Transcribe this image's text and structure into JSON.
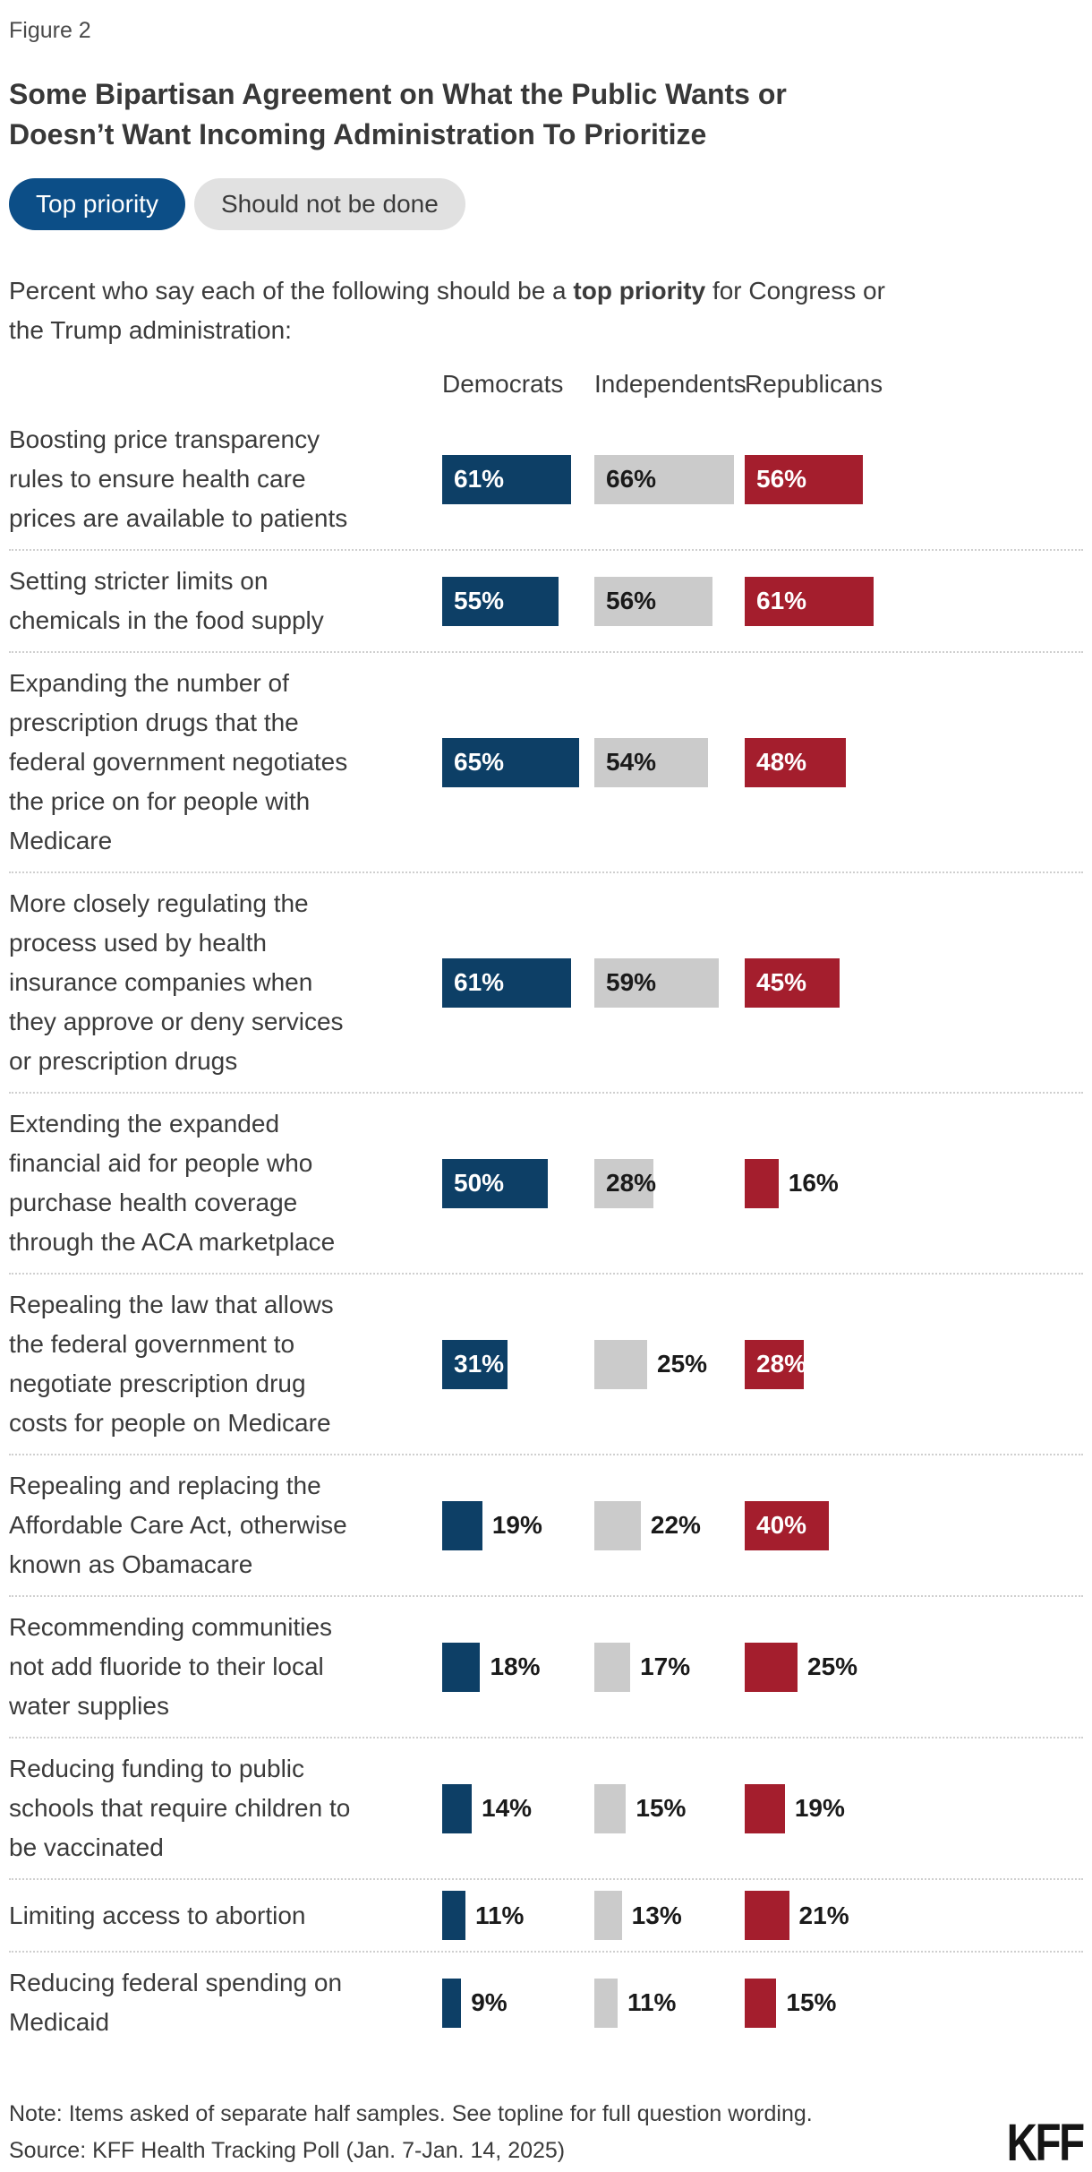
{
  "figure_label": "Figure 2",
  "title": "Some Bipartisan Agreement on What the Public Wants or\nDoesn’t Want Incoming Administration To Prioritize",
  "toggle": {
    "active_label": "Top priority",
    "inactive_label": "Should not be done"
  },
  "description": {
    "part1": "Percent who say each of the following should be a ",
    "bold": "top priority",
    "part2": " for Congress or",
    "part3": "the Trump administration:"
  },
  "colors": {
    "bars": [
      "#0D3F66",
      "#CBCBCB",
      "#A41E2D"
    ],
    "inside_label": [
      "#FFFFFF",
      "#1A1A1A",
      "#FFFFFF"
    ],
    "toggle_active_bg": "#0C4E87",
    "toggle_inactive_bg": "#E1E1E1"
  },
  "chart_data": {
    "type": "bar",
    "title": "Some Bipartisan Agreement on What the Public Wants or Doesn’t Want Incoming Administration To Prioritize",
    "unit": "%",
    "value_axis": "hidden",
    "value_range": [
      0,
      100
    ],
    "label_inside_threshold": 28,
    "categories": [
      "Boosting price transparency\nrules to ensure health care\nprices are available to patients",
      "Setting stricter limits on\nchemicals in the food supply",
      "Expanding the number of\nprescription drugs that the\nfederal government negotiates\nthe price on for people with\nMedicare",
      "More closely regulating the\nprocess used by health\ninsurance companies when\nthey approve or deny services\nor prescription drugs",
      "Extending the expanded\nfinancial aid for people who\npurchase health coverage\nthrough the ACA marketplace",
      "Repealing the law that allows\nthe federal government to\nnegotiate prescription drug\ncosts for people on Medicare",
      "Repealing and replacing the\nAffordable Care Act, otherwise\nknown as Obamacare",
      "Recommending communities\nnot add fluoride to their local\nwater supplies",
      "Reducing funding to public\nschools that require children to\nbe vaccinated",
      "Limiting access to abortion",
      "Reducing federal spending on\nMedicaid"
    ],
    "series": [
      {
        "name": "Democrats",
        "values": [
          61,
          55,
          65,
          61,
          50,
          31,
          19,
          18,
          14,
          11,
          9
        ]
      },
      {
        "name": "Independents",
        "values": [
          66,
          56,
          54,
          59,
          28,
          25,
          22,
          17,
          15,
          13,
          11
        ]
      },
      {
        "name": "Republicans",
        "values": [
          56,
          61,
          48,
          45,
          16,
          28,
          40,
          25,
          19,
          21,
          15
        ]
      }
    ]
  },
  "note": "Note: Items asked of separate half samples. See topline for full question wording.",
  "source": "Source: KFF Health Tracking Poll (Jan. 7-Jan. 14, 2025)",
  "logo": "KFF"
}
